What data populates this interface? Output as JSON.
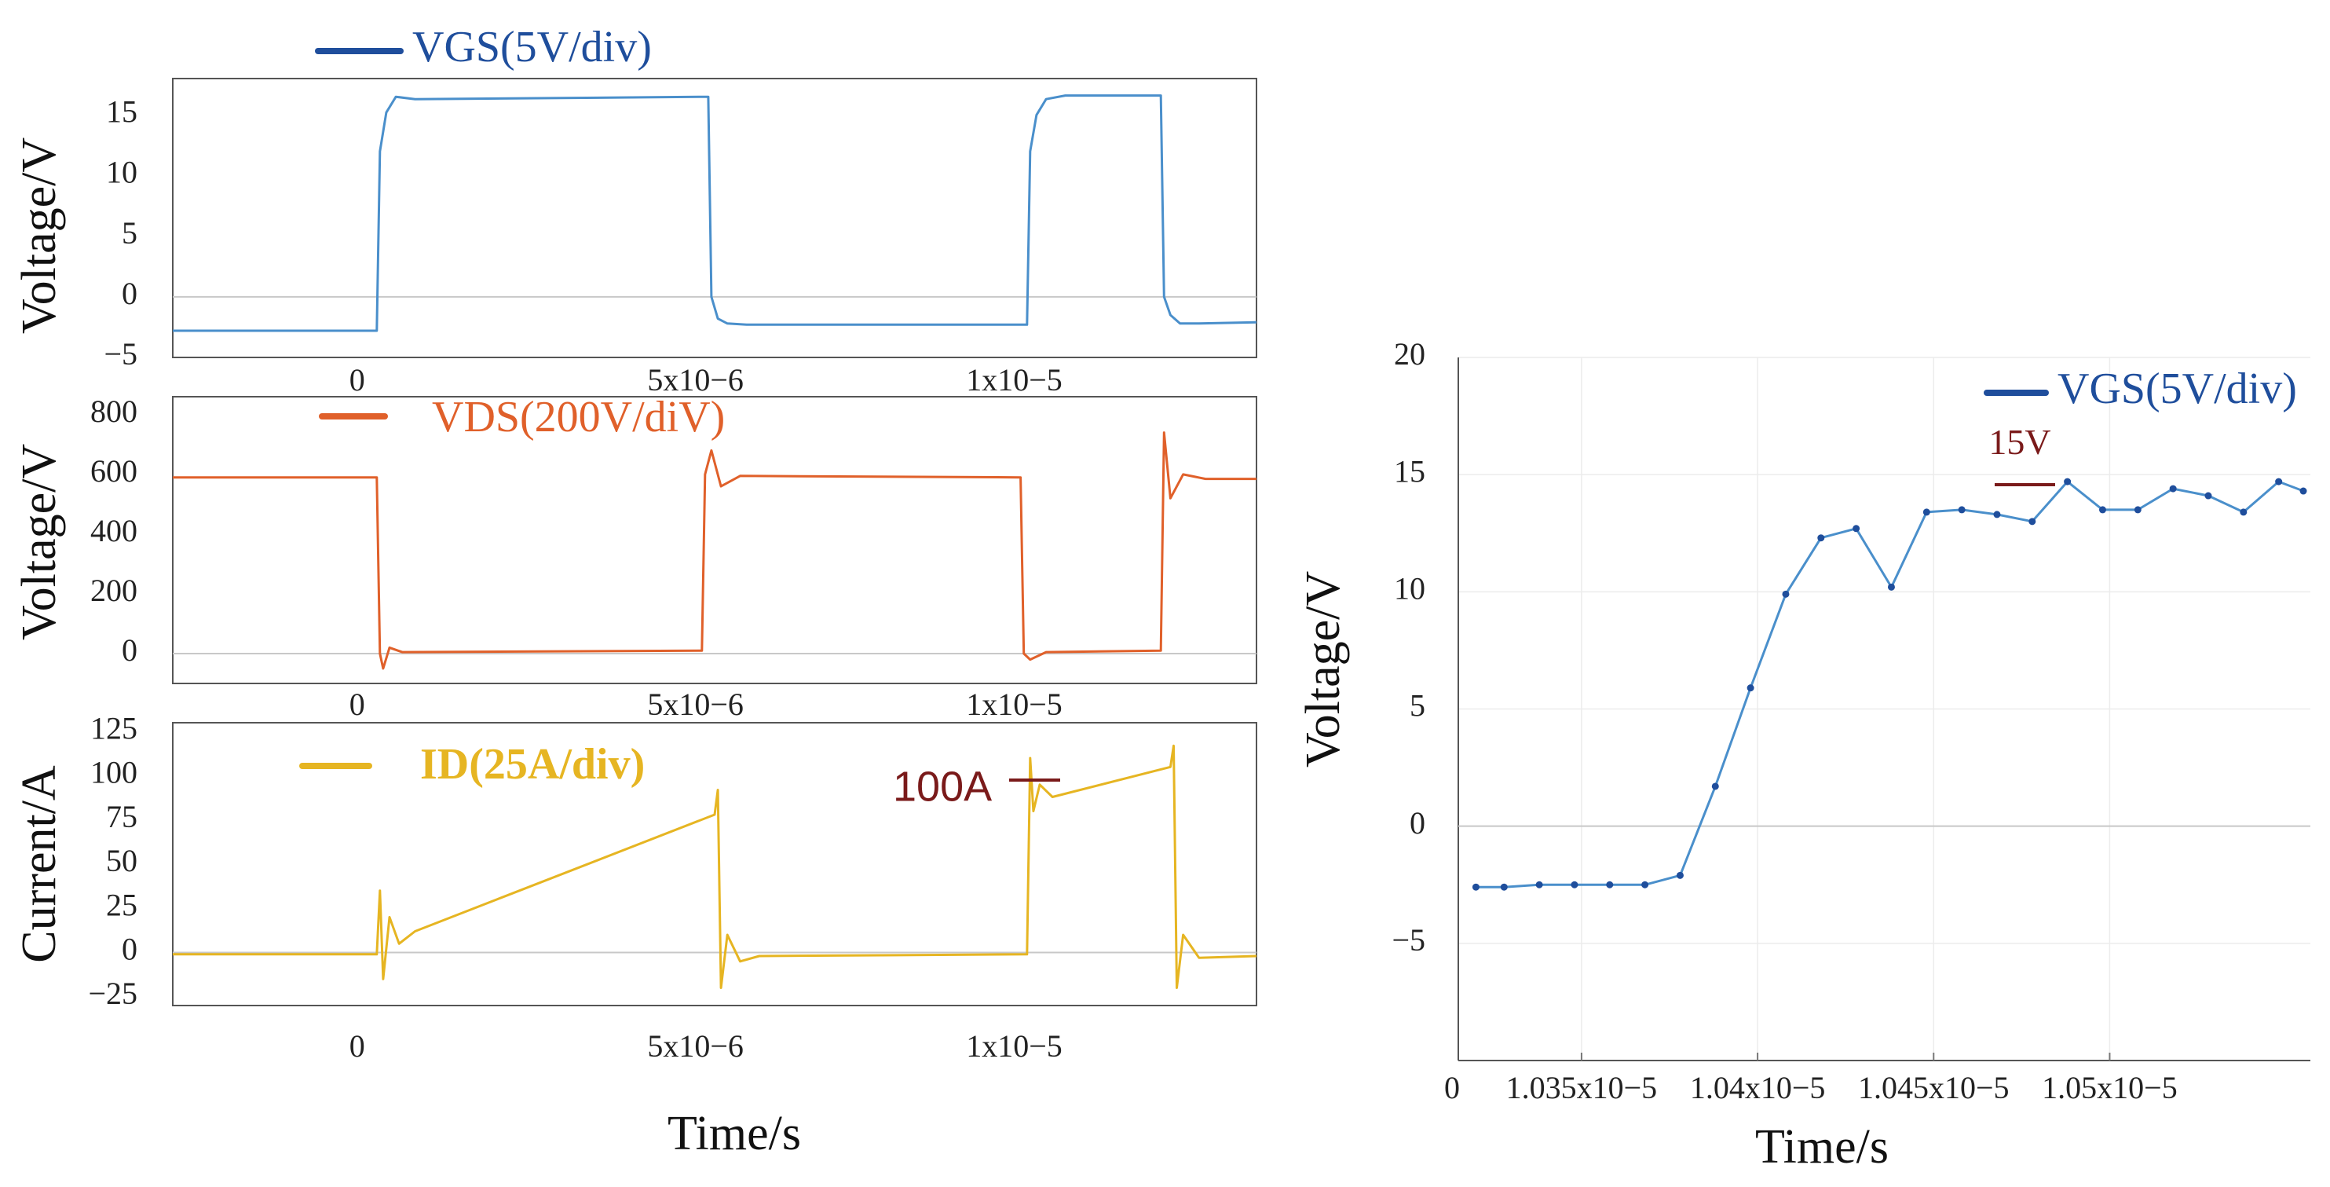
{
  "colors": {
    "vgs": "#4a8fcb",
    "vgs_legend": "#1f4e9c",
    "vds": "#e0602a",
    "id": "#e6b522",
    "annot": "#7a1a1a"
  },
  "chart_data": [
    {
      "type": "line",
      "title": "",
      "legend": "VGS(5V/div)",
      "ylabel": "Voltage/V",
      "xlabel": "",
      "xlim": [
        -3.2e-06,
        1.38e-05
      ],
      "ylim": [
        -5,
        18
      ],
      "x_ticks": [
        0,
        5e-06,
        1e-05
      ],
      "x_tick_labels": [
        "0",
        "5x10−6",
        "1x10−5"
      ],
      "y_ticks": [
        15,
        10,
        5,
        0,
        -5
      ],
      "y_tick_labels": [
        "15",
        "10",
        "5",
        "0",
        "−5"
      ],
      "series": [
        {
          "name": "VGS",
          "x": [
            -3.2e-06,
            0,
            5e-08,
            1.5e-07,
            3e-07,
            6e-07,
            5.2e-06,
            5.25e-06,
            5.35e-06,
            5.5e-06,
            5.8e-06,
            1.02e-05,
            1.025e-05,
            1.035e-05,
            1.05e-05,
            1.08e-05,
            1.23e-05,
            1.235e-05,
            1.245e-05,
            1.26e-05,
            1.29e-05,
            1.38e-05
          ],
          "values": [
            -2.8,
            -2.8,
            12,
            15.2,
            16.5,
            16.3,
            16.5,
            0,
            -1.8,
            -2.2,
            -2.3,
            -2.3,
            12,
            15,
            16.3,
            16.6,
            16.6,
            0,
            -1.5,
            -2.2,
            -2.2,
            -2.1
          ]
        }
      ]
    },
    {
      "type": "line",
      "title": "",
      "legend": "VDS(200V/diV)",
      "ylabel": "Voltage/V",
      "xlabel": "",
      "xlim": [
        -3.2e-06,
        1.38e-05
      ],
      "ylim": [
        -100,
        860
      ],
      "x_ticks": [
        0,
        5e-06,
        1e-05
      ],
      "x_tick_labels": [
        "0",
        "5x10−6",
        "1x10−5"
      ],
      "y_ticks": [
        800,
        600,
        400,
        200,
        0
      ],
      "y_tick_labels": [
        "800",
        "600",
        "400",
        "200",
        "0"
      ],
      "series": [
        {
          "name": "VDS",
          "x": [
            -3.2e-06,
            0,
            5e-08,
            1e-07,
            2e-07,
            4e-07,
            5.1e-06,
            5.15e-06,
            5.25e-06,
            5.4e-06,
            5.7e-06,
            1.01e-05,
            1.015e-05,
            1.025e-05,
            1.05e-05,
            1.23e-05,
            1.235e-05,
            1.245e-05,
            1.265e-05,
            1.3e-05,
            1.38e-05
          ],
          "values": [
            590,
            590,
            0,
            -50,
            20,
            5,
            10,
            600,
            680,
            560,
            595,
            590,
            0,
            -20,
            5,
            10,
            740,
            520,
            600,
            585,
            585
          ]
        }
      ]
    },
    {
      "type": "line",
      "title": "",
      "legend": "ID(25A/div)",
      "ylabel": "Current/A",
      "xlabel": "Time/s",
      "xlim": [
        -3.2e-06,
        1.38e-05
      ],
      "ylim": [
        -30,
        130
      ],
      "x_ticks": [
        0,
        5e-06,
        1e-05
      ],
      "x_tick_labels": [
        "0",
        "5x10−6",
        "1x10−5"
      ],
      "y_ticks": [
        125,
        100,
        75,
        50,
        25,
        0,
        -25
      ],
      "y_tick_labels": [
        "125",
        "100",
        "75",
        "50",
        "25",
        "0",
        "−25"
      ],
      "annotation": "100A",
      "series": [
        {
          "name": "ID",
          "x": [
            -3.2e-06,
            0,
            5e-08,
            1e-07,
            2e-07,
            3.5e-07,
            6e-07,
            5.3e-06,
            5.35e-06,
            5.4e-06,
            5.5e-06,
            5.7e-06,
            6e-06,
            1.02e-05,
            1.025e-05,
            1.03e-05,
            1.04e-05,
            1.06e-05,
            1.245e-05,
            1.25e-05,
            1.255e-05,
            1.265e-05,
            1.29e-05,
            1.38e-05
          ],
          "values": [
            -1,
            -1,
            35,
            -15,
            20,
            5,
            12,
            78,
            92,
            -20,
            10,
            -5,
            -2,
            -1,
            110,
            80,
            95,
            88,
            105,
            117,
            -20,
            10,
            -3,
            -2
          ]
        }
      ]
    },
    {
      "type": "line",
      "title": "",
      "legend": "VGS(5V/div)",
      "ylabel": "Voltage/V",
      "xlabel": "Time/s",
      "xlim": [
        1.0315e-05,
        1.0557e-05
      ],
      "ylim": [
        -10,
        20
      ],
      "x_ticks": [
        1.0315e-05,
        1.035e-05,
        1.04e-05,
        1.045e-05,
        1.05e-05
      ],
      "x_tick_labels": [
        "0",
        "1.035x10−5",
        "1.04x10−5",
        "1.045x10−5",
        "1.05x10−5"
      ],
      "y_ticks": [
        20,
        15,
        10,
        5,
        0,
        -5
      ],
      "y_tick_labels": [
        "20",
        "15",
        "10",
        "5",
        "0",
        "−5"
      ],
      "annotation": "15V",
      "series": [
        {
          "name": "VGS",
          "x": [
            1.032e-05,
            1.0328e-05,
            1.0338e-05,
            1.0348e-05,
            1.0358e-05,
            1.0368e-05,
            1.0378e-05,
            1.0388e-05,
            1.0398e-05,
            1.0408e-05,
            1.0418e-05,
            1.0428e-05,
            1.0438e-05,
            1.0448e-05,
            1.0458e-05,
            1.0468e-05,
            1.0478e-05,
            1.0488e-05,
            1.0498e-05,
            1.0508e-05,
            1.0518e-05,
            1.0528e-05,
            1.0538e-05,
            1.0548e-05,
            1.0555e-05
          ],
          "values": [
            -2.6,
            -2.6,
            -2.5,
            -2.5,
            -2.5,
            -2.5,
            -2.1,
            1.7,
            5.9,
            9.9,
            12.3,
            12.7,
            10.2,
            13.4,
            13.5,
            13.3,
            13.0,
            14.7,
            13.5,
            13.5,
            14.4,
            14.1,
            13.4,
            14.7,
            14.3
          ]
        }
      ]
    }
  ]
}
